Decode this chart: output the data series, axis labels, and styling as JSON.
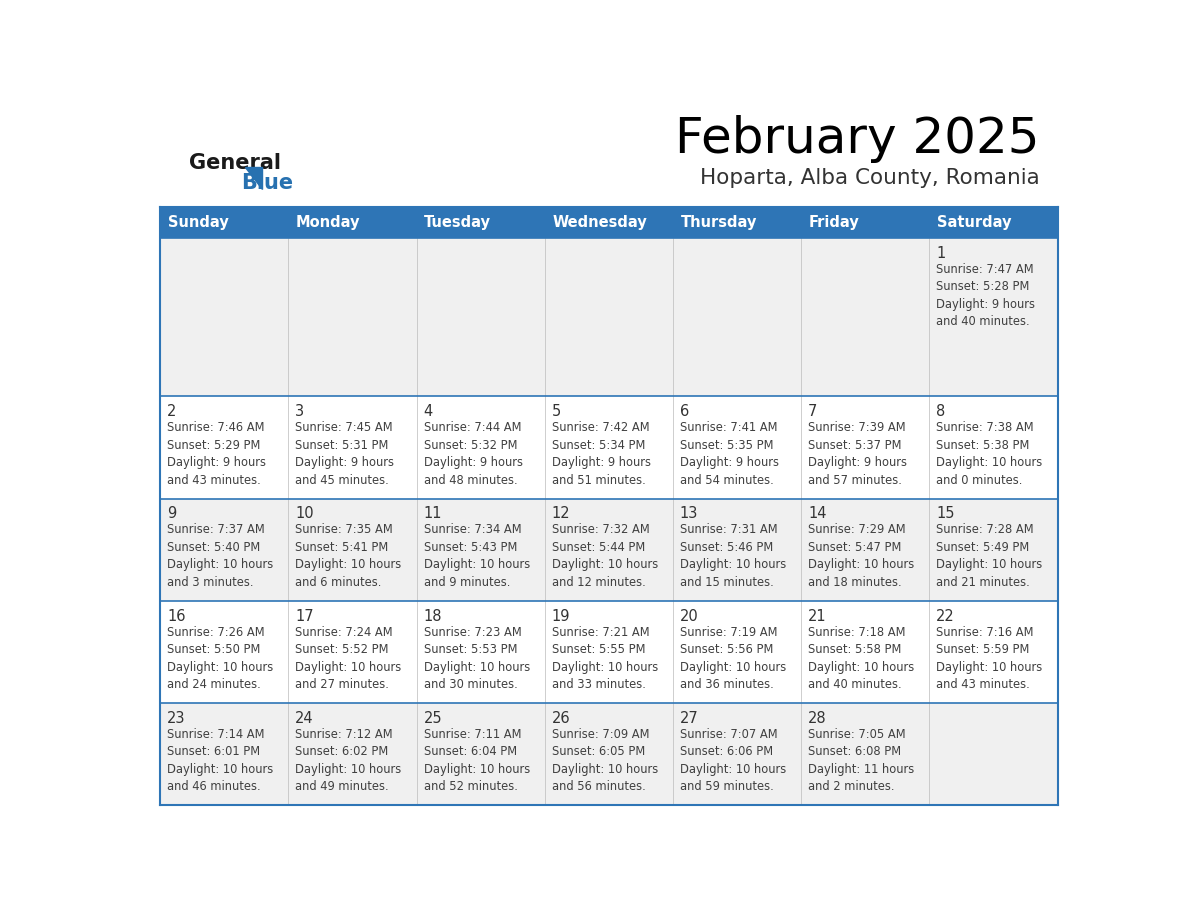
{
  "title": "February 2025",
  "subtitle": "Hoparta, Alba County, Romania",
  "days_of_week": [
    "Sunday",
    "Monday",
    "Tuesday",
    "Wednesday",
    "Thursday",
    "Friday",
    "Saturday"
  ],
  "header_color": "#2E75B6",
  "header_text_color": "#FFFFFF",
  "cell_bg_white": "#FFFFFF",
  "cell_bg_gray": "#F0F0F0",
  "border_color": "#2E75B6",
  "row_divider_color": "#2E75B6",
  "day_num_color": "#333333",
  "text_color": "#404040",
  "logo_general_color": "#1a1a1a",
  "logo_blue_color": "#2771B0",
  "calendar_data": [
    [
      null,
      null,
      null,
      null,
      null,
      null,
      {
        "day": 1,
        "sunrise": "7:47 AM",
        "sunset": "5:28 PM",
        "daylight": "9 hours\nand 40 minutes."
      }
    ],
    [
      {
        "day": 2,
        "sunrise": "7:46 AM",
        "sunset": "5:29 PM",
        "daylight": "9 hours\nand 43 minutes."
      },
      {
        "day": 3,
        "sunrise": "7:45 AM",
        "sunset": "5:31 PM",
        "daylight": "9 hours\nand 45 minutes."
      },
      {
        "day": 4,
        "sunrise": "7:44 AM",
        "sunset": "5:32 PM",
        "daylight": "9 hours\nand 48 minutes."
      },
      {
        "day": 5,
        "sunrise": "7:42 AM",
        "sunset": "5:34 PM",
        "daylight": "9 hours\nand 51 minutes."
      },
      {
        "day": 6,
        "sunrise": "7:41 AM",
        "sunset": "5:35 PM",
        "daylight": "9 hours\nand 54 minutes."
      },
      {
        "day": 7,
        "sunrise": "7:39 AM",
        "sunset": "5:37 PM",
        "daylight": "9 hours\nand 57 minutes."
      },
      {
        "day": 8,
        "sunrise": "7:38 AM",
        "sunset": "5:38 PM",
        "daylight": "10 hours\nand 0 minutes."
      }
    ],
    [
      {
        "day": 9,
        "sunrise": "7:37 AM",
        "sunset": "5:40 PM",
        "daylight": "10 hours\nand 3 minutes."
      },
      {
        "day": 10,
        "sunrise": "7:35 AM",
        "sunset": "5:41 PM",
        "daylight": "10 hours\nand 6 minutes."
      },
      {
        "day": 11,
        "sunrise": "7:34 AM",
        "sunset": "5:43 PM",
        "daylight": "10 hours\nand 9 minutes."
      },
      {
        "day": 12,
        "sunrise": "7:32 AM",
        "sunset": "5:44 PM",
        "daylight": "10 hours\nand 12 minutes."
      },
      {
        "day": 13,
        "sunrise": "7:31 AM",
        "sunset": "5:46 PM",
        "daylight": "10 hours\nand 15 minutes."
      },
      {
        "day": 14,
        "sunrise": "7:29 AM",
        "sunset": "5:47 PM",
        "daylight": "10 hours\nand 18 minutes."
      },
      {
        "day": 15,
        "sunrise": "7:28 AM",
        "sunset": "5:49 PM",
        "daylight": "10 hours\nand 21 minutes."
      }
    ],
    [
      {
        "day": 16,
        "sunrise": "7:26 AM",
        "sunset": "5:50 PM",
        "daylight": "10 hours\nand 24 minutes."
      },
      {
        "day": 17,
        "sunrise": "7:24 AM",
        "sunset": "5:52 PM",
        "daylight": "10 hours\nand 27 minutes."
      },
      {
        "day": 18,
        "sunrise": "7:23 AM",
        "sunset": "5:53 PM",
        "daylight": "10 hours\nand 30 minutes."
      },
      {
        "day": 19,
        "sunrise": "7:21 AM",
        "sunset": "5:55 PM",
        "daylight": "10 hours\nand 33 minutes."
      },
      {
        "day": 20,
        "sunrise": "7:19 AM",
        "sunset": "5:56 PM",
        "daylight": "10 hours\nand 36 minutes."
      },
      {
        "day": 21,
        "sunrise": "7:18 AM",
        "sunset": "5:58 PM",
        "daylight": "10 hours\nand 40 minutes."
      },
      {
        "day": 22,
        "sunrise": "7:16 AM",
        "sunset": "5:59 PM",
        "daylight": "10 hours\nand 43 minutes."
      }
    ],
    [
      {
        "day": 23,
        "sunrise": "7:14 AM",
        "sunset": "6:01 PM",
        "daylight": "10 hours\nand 46 minutes."
      },
      {
        "day": 24,
        "sunrise": "7:12 AM",
        "sunset": "6:02 PM",
        "daylight": "10 hours\nand 49 minutes."
      },
      {
        "day": 25,
        "sunrise": "7:11 AM",
        "sunset": "6:04 PM",
        "daylight": "10 hours\nand 52 minutes."
      },
      {
        "day": 26,
        "sunrise": "7:09 AM",
        "sunset": "6:05 PM",
        "daylight": "10 hours\nand 56 minutes."
      },
      {
        "day": 27,
        "sunrise": "7:07 AM",
        "sunset": "6:06 PM",
        "daylight": "10 hours\nand 59 minutes."
      },
      {
        "day": 28,
        "sunrise": "7:05 AM",
        "sunset": "6:08 PM",
        "daylight": "11 hours\nand 2 minutes."
      },
      null
    ]
  ],
  "row_heights_ratio": [
    1.55,
    1.0,
    1.0,
    1.0,
    1.0
  ]
}
